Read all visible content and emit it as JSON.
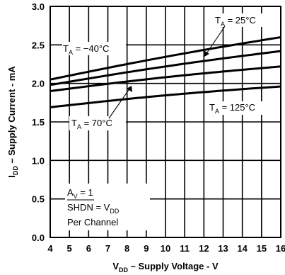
{
  "chart_data": {
    "type": "line",
    "xlabel": {
      "main": "V",
      "sub": "DD",
      "rest": " – Supply Voltage - V"
    },
    "ylabel": {
      "main": "I",
      "sub": "DD",
      "rest": " – Supply Current - mA"
    },
    "xlim": [
      4,
      16
    ],
    "ylim": [
      0,
      3.0
    ],
    "xticks": [
      "4",
      "5",
      "6",
      "7",
      "8",
      "9",
      "10",
      "11",
      "12",
      "13",
      "14",
      "15",
      "16"
    ],
    "yticks": [
      "0.0",
      "0.5",
      "1.0",
      "1.5",
      "2.0",
      "2.5",
      "3.0"
    ],
    "grid": true,
    "x": [
      4,
      16
    ],
    "series": [
      {
        "name": "T_A = −40°C",
        "values": [
          2.05,
          2.6
        ]
      },
      {
        "name": "T_A = 25°C",
        "values": [
          1.98,
          2.42
        ]
      },
      {
        "name": "T_A = 70°C",
        "values": [
          1.9,
          2.22
        ]
      },
      {
        "name": "T_A = 125°C",
        "values": [
          1.69,
          1.96
        ]
      }
    ],
    "labels": [
      {
        "main": "T",
        "sub": "A",
        "rest": " = 25°C"
      },
      {
        "main": "T",
        "sub": "A",
        "rest": " = −40°C"
      },
      {
        "main": "T",
        "sub": "A",
        "rest": " = 125°C"
      },
      {
        "main": "T",
        "sub": "A",
        "rest": " = 70°C"
      }
    ],
    "conditions": {
      "av": {
        "main": "A",
        "sub": "V",
        "rest": " = 1"
      },
      "shdn": {
        "bar": "SHDN",
        "eq": " = V",
        "sub": "DD"
      },
      "per": "Per Channel"
    }
  }
}
